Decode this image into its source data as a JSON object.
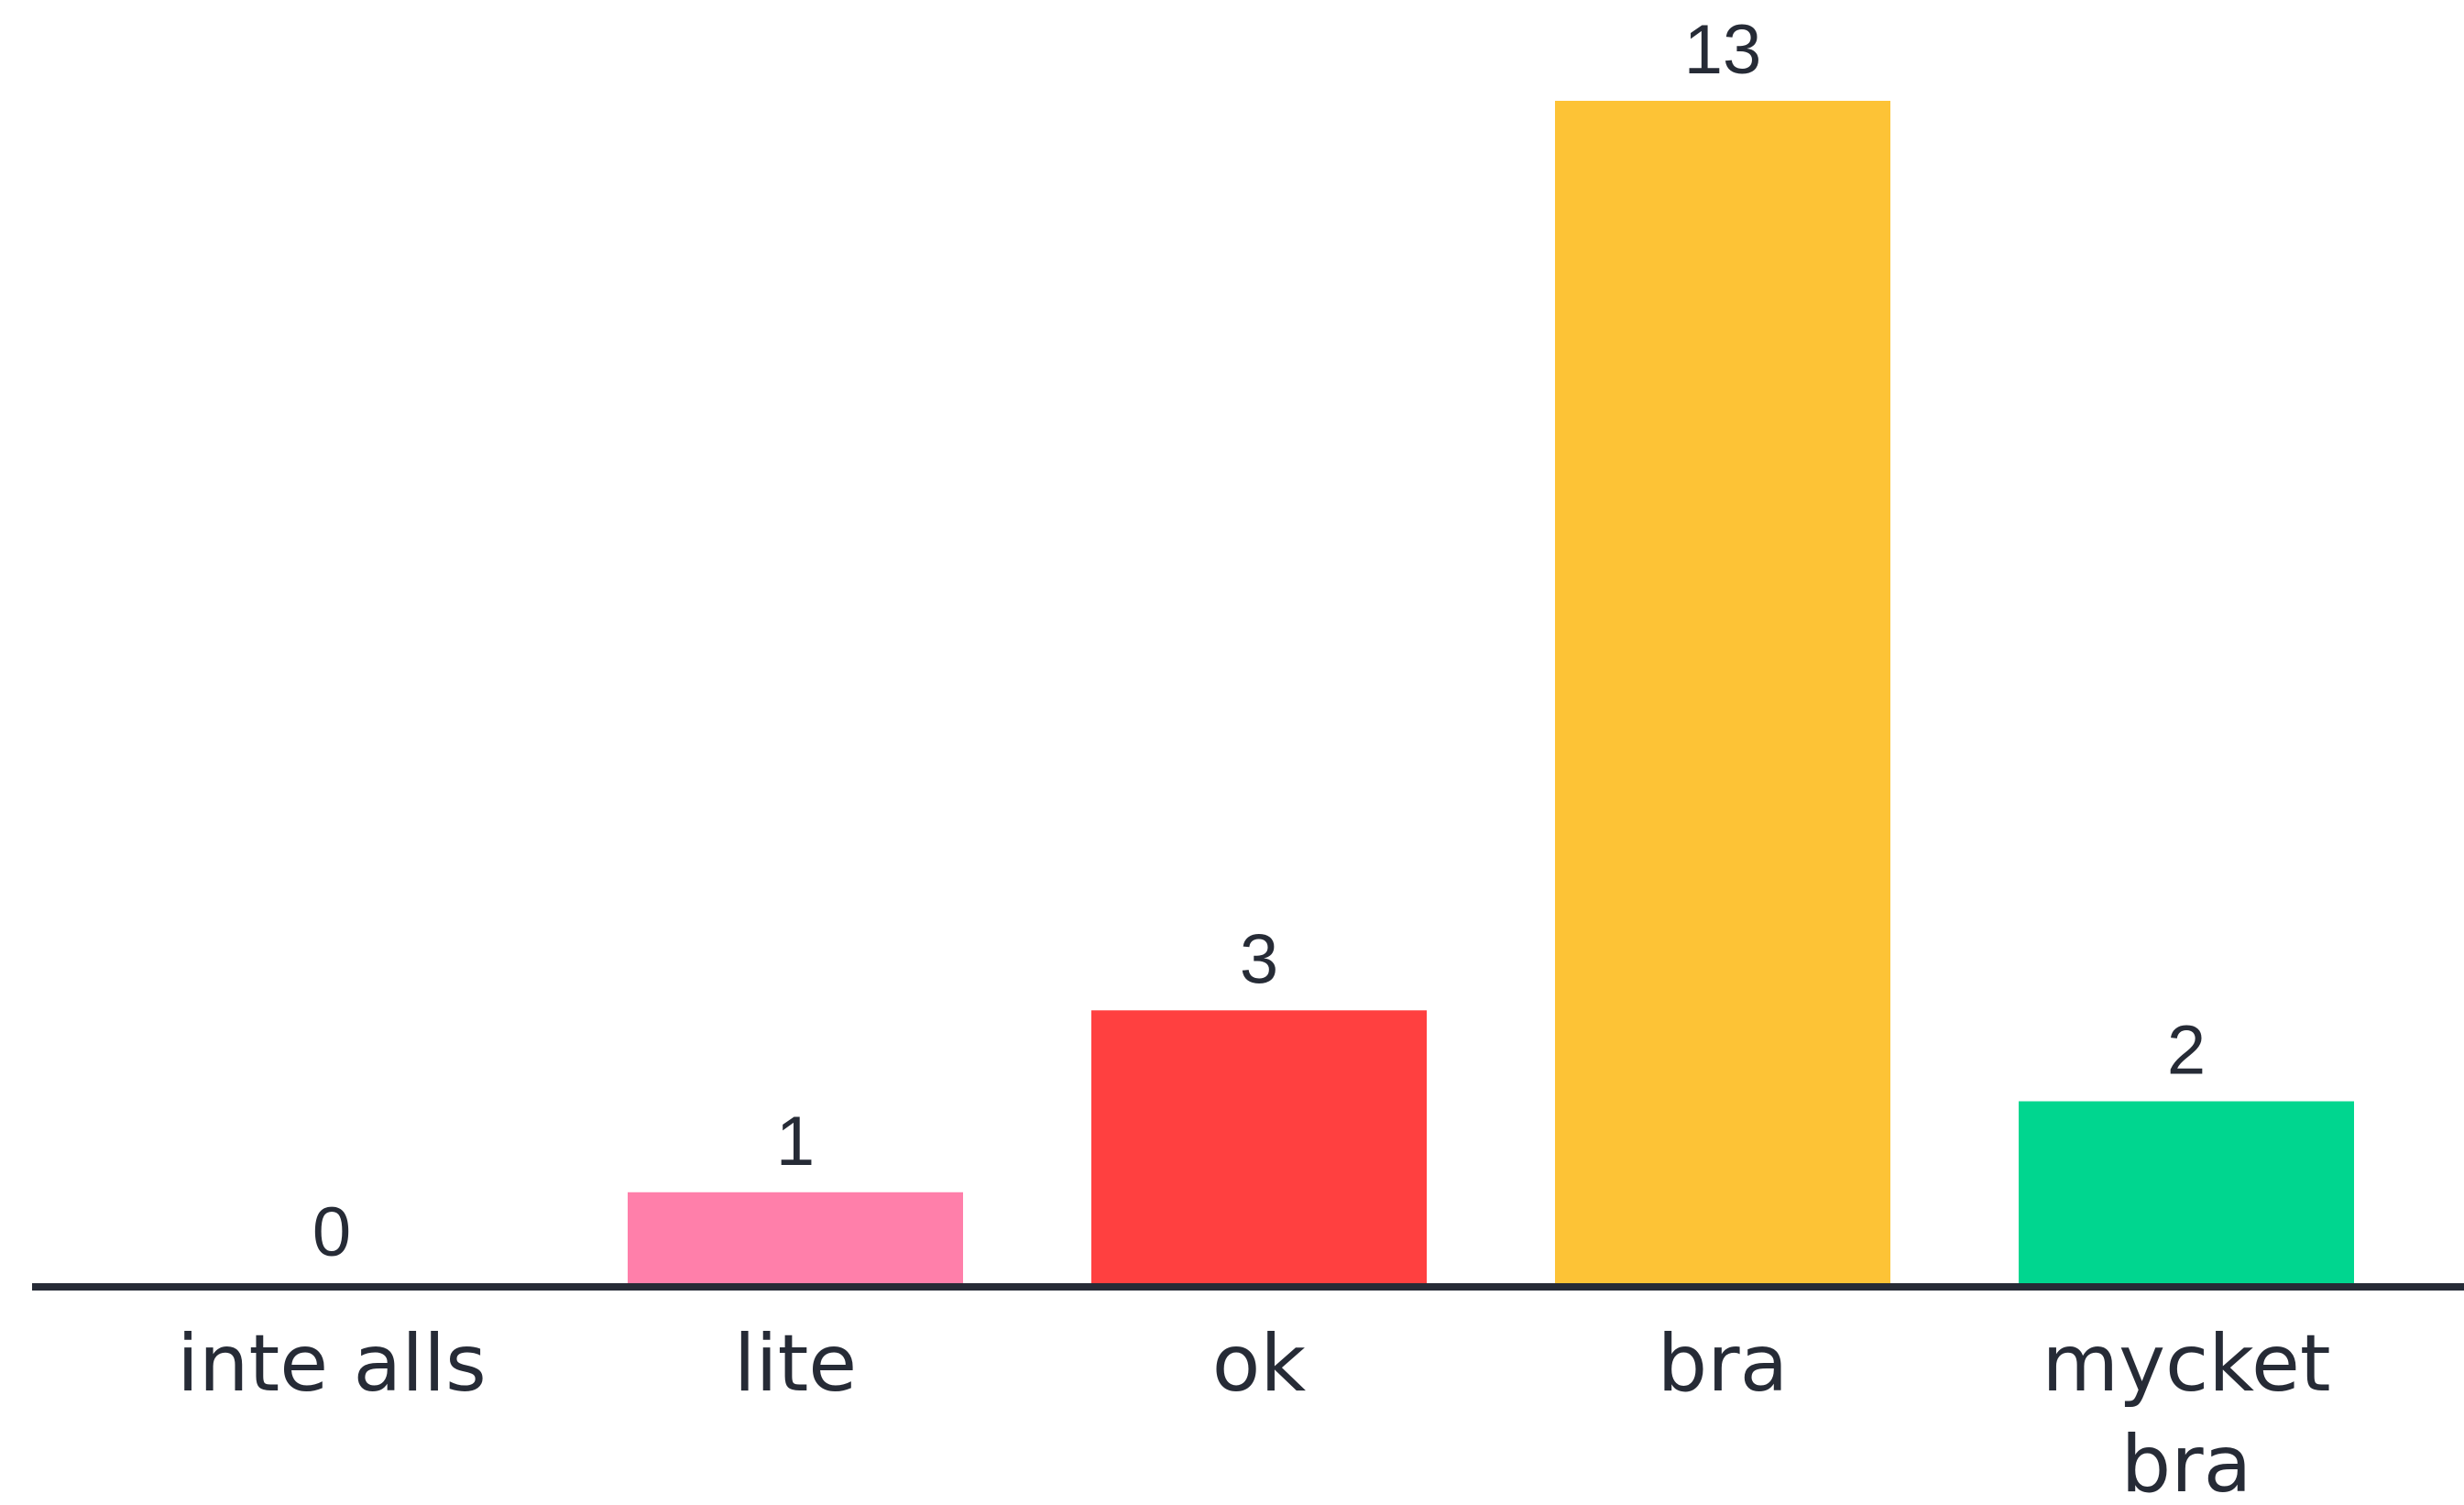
{
  "chart_data": {
    "type": "bar",
    "categories": [
      "inte alls",
      "lite",
      "ok",
      "bra",
      "mycket bra"
    ],
    "values": [
      0,
      1,
      3,
      13,
      2
    ],
    "colors": [
      "#4a6bf0",
      "#ff7faa",
      "#ff4040",
      "#fdc336",
      "#00d68f"
    ],
    "axis_color": "#262b36",
    "title": "",
    "xlabel": "",
    "ylabel": "",
    "ylim": [
      0,
      13
    ],
    "grid": false,
    "legend": "none"
  }
}
